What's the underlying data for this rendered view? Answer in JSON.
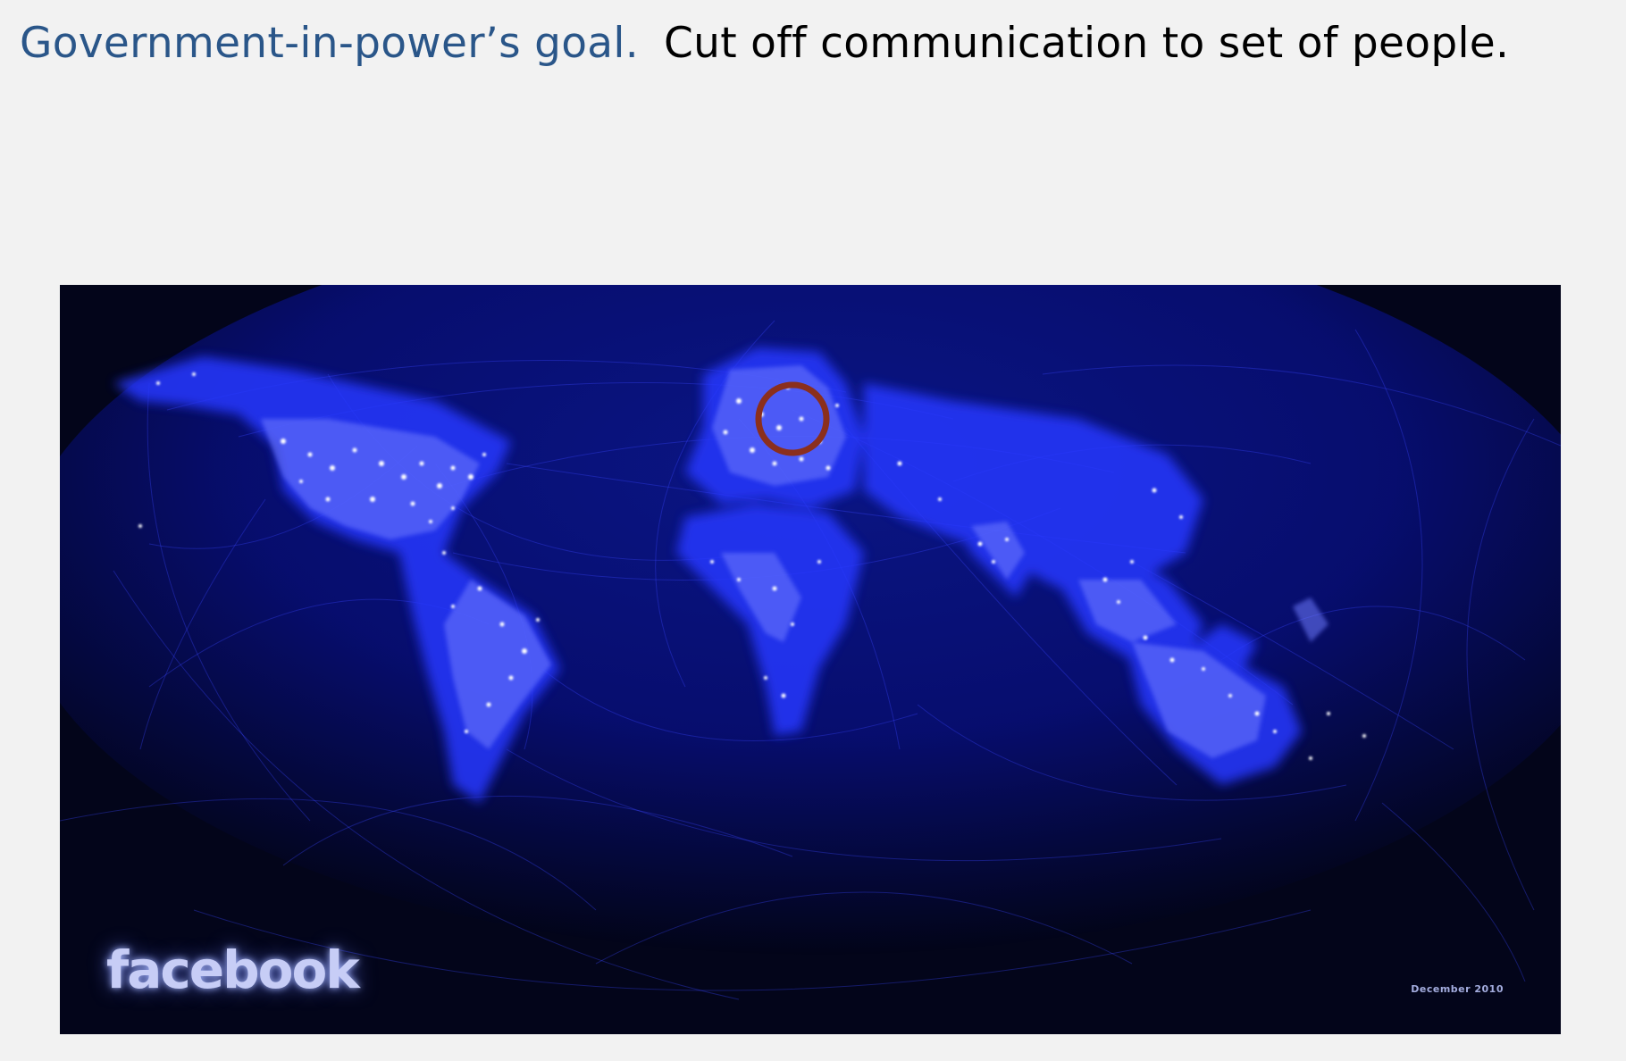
{
  "slide": {
    "title_lead": "Government-in-power’s goal.",
    "title_rest": "Cut off communication to set of people."
  },
  "map": {
    "logo_text": "facebook",
    "date_label": "December 2010",
    "colors": {
      "background": "#03051a",
      "connection_lines": "#3340ff",
      "land_glow": "#2a3cff",
      "city_lights": "#ffffff",
      "highlight_circle": "#8b2f1d"
    },
    "highlight": {
      "region": "Belarus",
      "shape": "circle-outline"
    }
  }
}
